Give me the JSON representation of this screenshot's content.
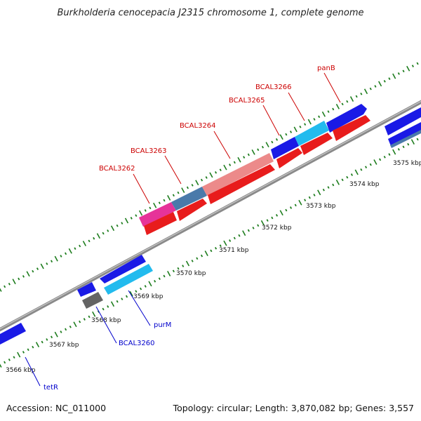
{
  "title": "Burkholderia cenocepacia J2315 chromosome 1, complete genome",
  "footer": {
    "accession": "Accession: NC_011000",
    "topology": "Topology: circular; Length: 3,870,082 bp; Genes: 3,557"
  },
  "colors": {
    "backbone": "#8a8a8a",
    "tick": "#1e7d1e",
    "label_forward": "#cc0000",
    "label_reverse": "#0000cc"
  },
  "ticks": [
    {
      "label": "3566 kbp"
    },
    {
      "label": "3567 kbp"
    },
    {
      "label": "3568 kbp"
    },
    {
      "label": "3569 kbp"
    },
    {
      "label": "3570 kbp"
    },
    {
      "label": "3571 kbp"
    },
    {
      "label": "3572 kbp"
    },
    {
      "label": "3573 kbp"
    },
    {
      "label": "3574 kbp"
    },
    {
      "label": "3575 kbp"
    }
  ],
  "gene_labels": [
    {
      "name": "BCAL3262",
      "strand": "forward"
    },
    {
      "name": "BCAL3263",
      "strand": "forward"
    },
    {
      "name": "BCAL3264",
      "strand": "forward"
    },
    {
      "name": "BCAL3265",
      "strand": "forward"
    },
    {
      "name": "BCAL3266",
      "strand": "forward"
    },
    {
      "name": "panB",
      "strand": "forward"
    },
    {
      "name": "purM",
      "strand": "reverse"
    },
    {
      "name": "BCAL3260",
      "strand": "reverse"
    },
    {
      "name": "tetR",
      "strand": "reverse"
    }
  ]
}
